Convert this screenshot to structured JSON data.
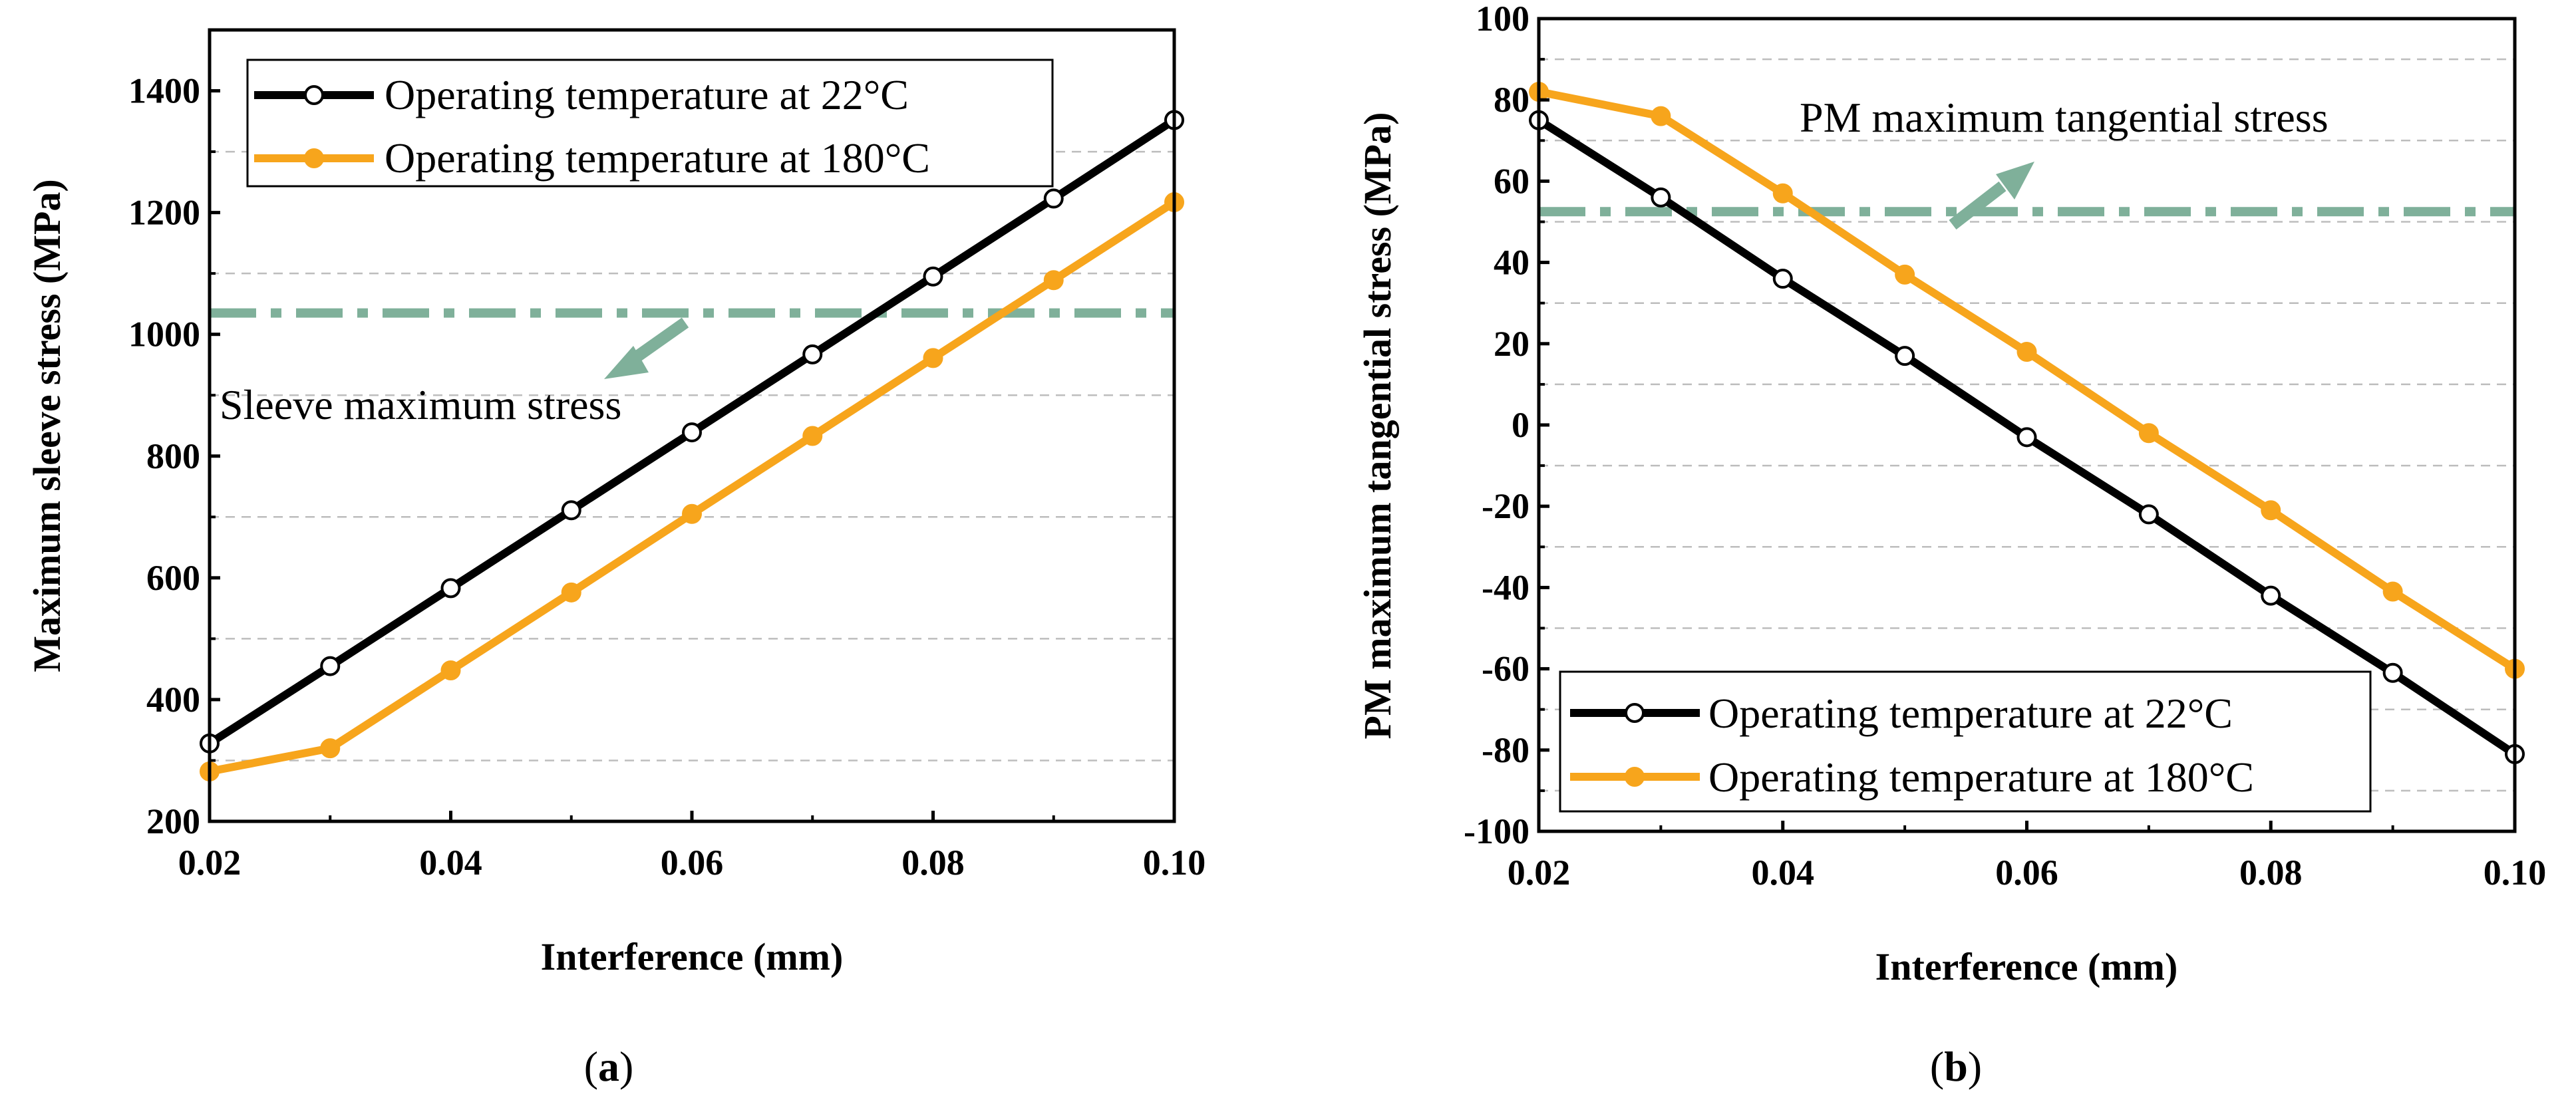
{
  "colors": {
    "series_22": "#000000",
    "series_180": "#F7A51C",
    "threshold": "#7FB09A",
    "grid": "#BDBDBD"
  },
  "chart_data": [
    {
      "type": "line",
      "panel_label": "a",
      "xlabel": "Interference (mm)",
      "ylabel": "Maximum sleeve stress (MPa)",
      "xlim": [
        0.02,
        0.1
      ],
      "ylim": [
        200,
        1500
      ],
      "x_ticks": [
        "0.02",
        "0.04",
        "0.06",
        "0.08",
        "0.10"
      ],
      "y_ticks": [
        "200",
        "400",
        "600",
        "800",
        "1000",
        "1200",
        "1400"
      ],
      "x": [
        0.02,
        0.03,
        0.04,
        0.05,
        0.06,
        0.07,
        0.08,
        0.09,
        0.1
      ],
      "series": [
        {
          "name": "Operating temperature at 22°C",
          "marker": "open-circle",
          "values": [
            328,
            455,
            583,
            711,
            839,
            967,
            1095,
            1223,
            1352
          ]
        },
        {
          "name": "Operating temperature at 180°C",
          "marker": "filled-circle",
          "values": [
            282,
            320,
            448,
            576,
            705,
            833,
            961,
            1089,
            1217
          ]
        }
      ],
      "threshold": {
        "label": "Sleeve maximum stress",
        "value": 1035
      },
      "legend_position": "top-left"
    },
    {
      "type": "line",
      "panel_label": "b",
      "xlabel": "Interference (mm)",
      "ylabel": "PM maximum tangential stress (MPa)",
      "xlim": [
        0.02,
        0.1
      ],
      "ylim": [
        -100,
        100
      ],
      "x_ticks": [
        "0.02",
        "0.04",
        "0.06",
        "0.08",
        "0.10"
      ],
      "y_ticks": [
        "-100",
        "-80",
        "-60",
        "-40",
        "-20",
        "0",
        "20",
        "40",
        "60",
        "80",
        "100"
      ],
      "x": [
        0.02,
        0.03,
        0.04,
        0.05,
        0.06,
        0.07,
        0.08,
        0.09,
        0.1
      ],
      "series": [
        {
          "name": "Operating temperature at 22°C",
          "marker": "open-circle",
          "values": [
            75,
            56,
            36,
            17,
            -3,
            -22,
            -42,
            -61,
            -81
          ]
        },
        {
          "name": "Operating temperature at 180°C",
          "marker": "filled-circle",
          "values": [
            82,
            76,
            57,
            37,
            18,
            -2,
            -21,
            -41,
            -60
          ]
        }
      ],
      "threshold": {
        "label": "PM maximum tangential stress",
        "value": 52.5
      },
      "legend_position": "bottom-left"
    }
  ]
}
